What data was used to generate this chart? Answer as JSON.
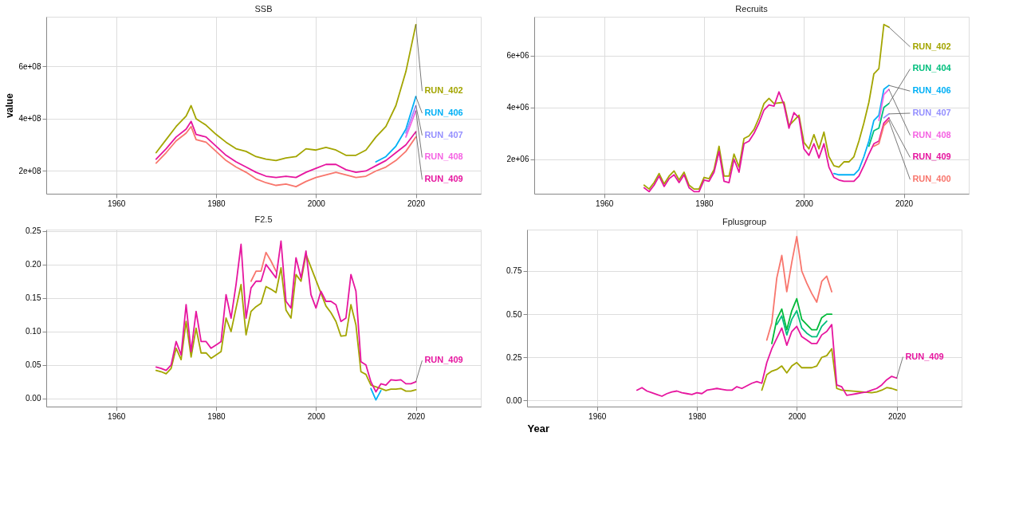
{
  "chart_data": [
    {
      "type": "line",
      "title": "SSB",
      "ylabel": "value",
      "grid": true,
      "legend": "right",
      "x": [
        1968,
        1970,
        1972,
        1974,
        1975,
        1976,
        1978,
        1980,
        1982,
        1984,
        1986,
        1988,
        1990,
        1992,
        1994,
        1996,
        1998,
        2000,
        2002,
        2004,
        2006,
        2008,
        2010,
        2012,
        2014,
        2016,
        2018,
        2020
      ],
      "xlim": [
        1946,
        2033
      ],
      "xticks": [
        1960,
        1980,
        2000,
        2020
      ],
      "ylim": [
        113000000,
        790000000
      ],
      "yticks": [
        {
          "value": 200000000,
          "label": "2e+08"
        },
        {
          "value": 400000000,
          "label": "4e+08"
        },
        {
          "value": 600000000,
          "label": "6e+08"
        }
      ],
      "series": [
        {
          "name": "RUN_402",
          "color": "#a3a500",
          "values": [
            270000000.0,
            320000000.0,
            370000000.0,
            410000000.0,
            450000000.0,
            400000000.0,
            375000000.0,
            340000000.0,
            310000000.0,
            285000000.0,
            275000000.0,
            255000000.0,
            245000000.0,
            240000000.0,
            250000000.0,
            255000000.0,
            285000000.0,
            280000000.0,
            290000000.0,
            280000000.0,
            260000000.0,
            260000000.0,
            280000000.0,
            330000000.0,
            370000000.0,
            450000000.0,
            580000000.0,
            760000000.0
          ]
        },
        {
          "color": "#f8766d",
          "values": [
            230000000.0,
            270000000.0,
            315000000.0,
            345000000.0,
            370000000.0,
            320000000.0,
            310000000.0,
            275000000.0,
            240000000.0,
            215000000.0,
            195000000.0,
            170000000.0,
            155000000.0,
            145000000.0,
            150000000.0,
            140000000.0,
            160000000.0,
            175000000.0,
            185000000.0,
            195000000.0,
            185000000.0,
            175000000.0,
            180000000.0,
            200000000.0,
            215000000.0,
            240000000.0,
            275000000.0,
            330000000.0
          ]
        },
        {
          "name": "RUN_406",
          "color": "#00b0f6",
          "values": [
            null,
            null,
            null,
            null,
            null,
            null,
            null,
            null,
            null,
            null,
            null,
            null,
            null,
            null,
            null,
            null,
            null,
            null,
            null,
            null,
            null,
            null,
            null,
            235000000.0,
            255000000.0,
            295000000.0,
            360000000.0,
            485000000.0
          ]
        },
        {
          "name": "RUN_407",
          "color": "#9590ff",
          "values": [
            null,
            null,
            null,
            null,
            null,
            null,
            null,
            null,
            null,
            null,
            null,
            null,
            null,
            null,
            null,
            null,
            null,
            null,
            null,
            null,
            null,
            null,
            null,
            null,
            null,
            null,
            345000000.0,
            450000000.0
          ]
        },
        {
          "name": "RUN_408",
          "color": "#f564e3",
          "values": [
            null,
            null,
            null,
            null,
            null,
            null,
            null,
            null,
            null,
            null,
            null,
            null,
            null,
            null,
            null,
            null,
            null,
            null,
            null,
            null,
            null,
            null,
            null,
            null,
            null,
            null,
            330000000.0,
            430000000.0
          ]
        },
        {
          "name": "RUN_409",
          "color": "#e6169f",
          "values": [
            245000000.0,
            285000000.0,
            330000000.0,
            360000000.0,
            390000000.0,
            340000000.0,
            330000000.0,
            295000000.0,
            260000000.0,
            235000000.0,
            215000000.0,
            195000000.0,
            180000000.0,
            175000000.0,
            180000000.0,
            175000000.0,
            195000000.0,
            210000000.0,
            225000000.0,
            225000000.0,
            205000000.0,
            195000000.0,
            200000000.0,
            220000000.0,
            240000000.0,
            270000000.0,
            300000000.0,
            350000000.0
          ]
        }
      ]
    },
    {
      "type": "line",
      "title": "Recruits",
      "grid": true,
      "legend": "right",
      "x": [
        1968,
        1969,
        1970,
        1971,
        1972,
        1973,
        1974,
        1975,
        1976,
        1977,
        1978,
        1979,
        1980,
        1981,
        1982,
        1983,
        1984,
        1985,
        1986,
        1987,
        1988,
        1989,
        1990,
        1991,
        1992,
        1993,
        1994,
        1995,
        1996,
        1997,
        1998,
        1999,
        2000,
        2001,
        2002,
        2003,
        2004,
        2005,
        2006,
        2007,
        2008,
        2009,
        2010,
        2011,
        2012,
        2013,
        2014,
        2015,
        2016,
        2017
      ],
      "xlim": [
        1946,
        2033
      ],
      "xticks": [
        1960,
        1980,
        2000,
        2020
      ],
      "ylim": [
        670000,
        7500000
      ],
      "yticks": [
        {
          "value": 2000000,
          "label": "2e+06"
        },
        {
          "value": 4000000,
          "label": "4e+06"
        },
        {
          "value": 6000000,
          "label": "6e+06"
        }
      ],
      "series": [
        {
          "name": "RUN_402",
          "color": "#a3a500",
          "values": [
            1000000.0,
            850000.0,
            1100000.0,
            1450000.0,
            1050000.0,
            1350000.0,
            1550000.0,
            1200000.0,
            1500000.0,
            1000000.0,
            850000.0,
            850000.0,
            1300000.0,
            1250000.0,
            1600000.0,
            2500000.0,
            1350000.0,
            1350000.0,
            2200000.0,
            1700000.0,
            2800000.0,
            2900000.0,
            3150000.0,
            3600000.0,
            4150000.0,
            4350000.0,
            4150000.0,
            null,
            4200000.0,
            3300000.0,
            null,
            3700000.0,
            2650000.0,
            2400000.0,
            2950000.0,
            2400000.0,
            3050000.0,
            2100000.0,
            1750000.0,
            1700000.0,
            1900000.0,
            1900000.0,
            2100000.0,
            2700000.0,
            3400000.0,
            4200000.0,
            5300000.0,
            5500000.0,
            7200000.0,
            7100000.0
          ]
        },
        {
          "name": "RUN_404",
          "color": "#00bf7d",
          "values": [
            null,
            null,
            null,
            null,
            null,
            null,
            null,
            null,
            null,
            null,
            null,
            null,
            null,
            null,
            null,
            null,
            null,
            null,
            null,
            null,
            null,
            null,
            null,
            null,
            null,
            null,
            null,
            null,
            null,
            null,
            null,
            null,
            null,
            null,
            null,
            null,
            null,
            null,
            null,
            null,
            null,
            null,
            null,
            null,
            null,
            2500000.0,
            3100000.0,
            3200000.0,
            4000000.0,
            4150000.0
          ]
        },
        {
          "name": "RUN_406",
          "color": "#00b0f6",
          "values": [
            null,
            null,
            null,
            null,
            null,
            null,
            null,
            null,
            null,
            null,
            null,
            null,
            null,
            null,
            null,
            null,
            null,
            null,
            null,
            null,
            null,
            null,
            null,
            null,
            null,
            null,
            null,
            null,
            null,
            null,
            null,
            null,
            null,
            null,
            null,
            null,
            null,
            null,
            1450000.0,
            1400000.0,
            1400000.0,
            1400000.0,
            1400000.0,
            1600000.0,
            2100000.0,
            2700000.0,
            3500000.0,
            3700000.0,
            4700000.0,
            4850000.0
          ]
        },
        {
          "name": "RUN_407",
          "color": "#9590ff",
          "values": [
            null,
            null,
            null,
            null,
            null,
            null,
            null,
            null,
            null,
            null,
            null,
            null,
            null,
            null,
            null,
            null,
            null,
            null,
            null,
            null,
            null,
            null,
            null,
            null,
            null,
            null,
            null,
            null,
            null,
            null,
            null,
            null,
            null,
            null,
            null,
            null,
            null,
            null,
            null,
            null,
            null,
            null,
            null,
            null,
            null,
            null,
            null,
            null,
            3600000.0,
            3750000.0
          ]
        },
        {
          "name": "RUN_408",
          "color": "#f564e3",
          "values": [
            null,
            null,
            null,
            null,
            null,
            null,
            null,
            null,
            null,
            null,
            null,
            null,
            null,
            null,
            null,
            null,
            null,
            null,
            null,
            null,
            null,
            null,
            null,
            null,
            null,
            null,
            null,
            null,
            null,
            null,
            null,
            null,
            null,
            null,
            null,
            null,
            null,
            null,
            null,
            null,
            null,
            null,
            null,
            null,
            null,
            null,
            null,
            3500000.0,
            4500000.0,
            4700000.0
          ]
        },
        {
          "name": "RUN_409",
          "color": "#e6169f",
          "values": [
            900000.0,
            750000.0,
            1000000.0,
            1350000.0,
            950000.0,
            1250000.0,
            1400000.0,
            1100000.0,
            1400000.0,
            900000.0,
            750000.0,
            750000.0,
            1200000.0,
            1150000.0,
            1500000.0,
            2300000.0,
            1150000.0,
            1100000.0,
            2000000.0,
            1500000.0,
            2600000.0,
            2700000.0,
            3000000.0,
            3400000.0,
            3900000.0,
            4100000.0,
            4050000.0,
            4600000.0,
            4100000.0,
            3200000.0,
            3800000.0,
            3600000.0,
            2400000.0,
            2150000.0,
            2600000.0,
            2050000.0,
            2600000.0,
            1700000.0,
            1300000.0,
            1200000.0,
            1150000.0,
            1150000.0,
            1150000.0,
            1350000.0,
            1750000.0,
            2200000.0,
            2600000.0,
            2700000.0,
            3400000.0,
            3600000.0
          ]
        },
        {
          "name": "RUN_400",
          "color": "#f8766d",
          "values": [
            null,
            null,
            null,
            null,
            null,
            null,
            null,
            null,
            null,
            null,
            null,
            null,
            null,
            null,
            null,
            null,
            null,
            null,
            null,
            null,
            null,
            null,
            null,
            null,
            null,
            null,
            null,
            null,
            null,
            null,
            null,
            null,
            null,
            null,
            null,
            null,
            null,
            null,
            null,
            null,
            null,
            null,
            null,
            null,
            null,
            null,
            2500000.0,
            2600000.0,
            3300000.0,
            3500000.0
          ]
        }
      ]
    },
    {
      "type": "line",
      "title": "F2.5",
      "grid": true,
      "legend": "right",
      "x": [
        1968,
        1969,
        1970,
        1971,
        1972,
        1973,
        1974,
        1975,
        1976,
        1977,
        1978,
        1979,
        1980,
        1981,
        1982,
        1983,
        1984,
        1985,
        1986,
        1987,
        1988,
        1989,
        1990,
        1991,
        1992,
        1993,
        1994,
        1995,
        1996,
        1997,
        1998,
        1999,
        2000,
        2001,
        2002,
        2003,
        2004,
        2005,
        2006,
        2007,
        2008,
        2009,
        2010,
        2011,
        2012,
        2013,
        2014,
        2015,
        2016,
        2017,
        2018,
        2019,
        2020
      ],
      "xlim": [
        1946,
        2033
      ],
      "xticks": [
        1960,
        1980,
        2000,
        2020
      ],
      "ylim": [
        -0.012,
        0.252
      ],
      "yticks": [
        {
          "value": 0,
          "label": "0.00"
        },
        0.05,
        {
          "value": 0.1,
          "label": "0.10"
        },
        0.15,
        {
          "value": 0.2,
          "label": "0.20"
        },
        0.25
      ],
      "series": [
        {
          "color": "#a3a500",
          "values": [
            0.042,
            0.04,
            0.037,
            0.045,
            0.075,
            0.058,
            0.115,
            0.062,
            0.105,
            0.068,
            0.068,
            0.06,
            0.065,
            0.07,
            0.12,
            0.1,
            0.135,
            0.17,
            0.095,
            0.13,
            0.137,
            0.142,
            0.167,
            0.163,
            0.158,
            0.195,
            0.132,
            0.12,
            0.185,
            0.175,
            0.215,
            null,
            null,
            null,
            0.138,
            0.128,
            0.115,
            0.093,
            0.094,
            0.14,
            0.11,
            0.04,
            0.036,
            0.02,
            null,
            0.015,
            0.012,
            0.014,
            0.014,
            0.015,
            0.011,
            0.011,
            0.013
          ]
        },
        {
          "color": "#00b0f6",
          "values": [
            null,
            null,
            null,
            null,
            null,
            null,
            null,
            null,
            null,
            null,
            null,
            null,
            null,
            null,
            null,
            null,
            null,
            null,
            null,
            null,
            null,
            null,
            null,
            null,
            null,
            null,
            null,
            null,
            null,
            null,
            null,
            null,
            null,
            null,
            null,
            null,
            null,
            null,
            null,
            null,
            null,
            null,
            null,
            0.015,
            -0.002,
            0.012,
            null,
            null,
            null,
            null,
            null,
            null,
            null
          ]
        },
        {
          "color": "#f8766d",
          "values": [
            null,
            null,
            null,
            null,
            null,
            null,
            null,
            null,
            null,
            null,
            null,
            null,
            null,
            null,
            null,
            null,
            null,
            null,
            null,
            0.175,
            0.19,
            0.19,
            0.218,
            0.205,
            0.19,
            null,
            null,
            null,
            null,
            null,
            null,
            null,
            null,
            null,
            null,
            null,
            null,
            null,
            null,
            null,
            null,
            null,
            null,
            null,
            null,
            null,
            null,
            null,
            null,
            null,
            null,
            null,
            null
          ]
        },
        {
          "name": "RUN_409",
          "color": "#e6169f",
          "values": [
            0.047,
            0.045,
            0.042,
            0.05,
            0.085,
            0.065,
            0.14,
            0.07,
            0.13,
            0.085,
            0.085,
            0.075,
            0.08,
            0.085,
            0.155,
            0.12,
            0.17,
            0.23,
            0.12,
            0.165,
            0.175,
            0.175,
            0.2,
            0.19,
            0.18,
            0.235,
            0.145,
            0.135,
            0.21,
            0.18,
            0.22,
            0.155,
            0.135,
            0.16,
            0.145,
            0.145,
            0.14,
            0.115,
            0.12,
            0.185,
            0.16,
            0.055,
            0.05,
            0.025,
            0.01,
            0.022,
            0.02,
            0.028,
            0.027,
            0.028,
            0.022,
            0.022,
            0.025
          ]
        }
      ]
    },
    {
      "type": "line",
      "title": "Fplusgroup",
      "xlabel": "Year",
      "grid": true,
      "legend": "right",
      "x": [
        1968,
        1969,
        1970,
        1971,
        1972,
        1973,
        1974,
        1975,
        1976,
        1977,
        1978,
        1979,
        1980,
        1981,
        1982,
        1983,
        1984,
        1985,
        1986,
        1987,
        1988,
        1989,
        1990,
        1991,
        1992,
        1993,
        1994,
        1995,
        1996,
        1997,
        1998,
        1999,
        2000,
        2001,
        2002,
        2003,
        2004,
        2005,
        2006,
        2007,
        2008,
        2009,
        2010,
        2011,
        2012,
        2013,
        2014,
        2015,
        2016,
        2017,
        2018,
        2019,
        2020
      ],
      "xlim": [
        1946,
        2033
      ],
      "xticks": [
        1960,
        1980,
        2000,
        2020
      ],
      "ylim": [
        -0.035,
        0.99
      ],
      "yticks": [
        {
          "value": 0,
          "label": "0.00"
        },
        0.25,
        {
          "value": 0.5,
          "label": "0.50"
        },
        0.75
      ],
      "series": [
        {
          "color": "#a3a500",
          "values": [
            null,
            null,
            null,
            null,
            null,
            null,
            null,
            null,
            null,
            null,
            null,
            null,
            null,
            null,
            null,
            null,
            null,
            null,
            null,
            null,
            null,
            null,
            null,
            null,
            null,
            0.06,
            0.15,
            0.17,
            0.18,
            0.2,
            0.16,
            0.2,
            0.22,
            0.19,
            0.19,
            0.19,
            0.2,
            0.25,
            0.26,
            0.3,
            0.07,
            0.06,
            null,
            null,
            null,
            null,
            null,
            0.045,
            0.05,
            0.06,
            0.075,
            0.07,
            0.06
          ]
        },
        {
          "color": "#f8766d",
          "values": [
            null,
            null,
            null,
            null,
            null,
            null,
            null,
            null,
            null,
            null,
            null,
            null,
            null,
            null,
            null,
            null,
            null,
            null,
            null,
            null,
            null,
            null,
            null,
            null,
            null,
            null,
            0.35,
            0.45,
            0.71,
            0.84,
            0.63,
            0.8,
            0.95,
            0.75,
            0.68,
            0.62,
            0.57,
            0.69,
            0.72,
            0.63,
            null,
            null,
            null,
            null,
            null,
            null,
            null,
            null,
            null,
            null,
            null,
            null,
            null
          ]
        },
        {
          "color": "#00ba38",
          "values": [
            null,
            null,
            null,
            null,
            null,
            null,
            null,
            null,
            null,
            null,
            null,
            null,
            null,
            null,
            null,
            null,
            null,
            null,
            null,
            null,
            null,
            null,
            null,
            null,
            null,
            null,
            null,
            0.33,
            0.47,
            0.53,
            0.41,
            0.52,
            0.59,
            0.47,
            0.44,
            0.41,
            0.41,
            0.48,
            0.5,
            0.5,
            null,
            null,
            null,
            null,
            null,
            null,
            null,
            null,
            null,
            null,
            null,
            null,
            null
          ]
        },
        {
          "color": "#00bf7d",
          "values": [
            null,
            null,
            null,
            null,
            null,
            null,
            null,
            null,
            null,
            null,
            null,
            null,
            null,
            null,
            null,
            null,
            null,
            null,
            null,
            null,
            null,
            null,
            null,
            null,
            null,
            null,
            null,
            null,
            0.44,
            0.49,
            0.38,
            0.47,
            0.52,
            0.42,
            0.39,
            0.37,
            0.37,
            0.43,
            0.46,
            null,
            null,
            null,
            null,
            null,
            null,
            null,
            null,
            null,
            null,
            null,
            null,
            null,
            null
          ]
        },
        {
          "name": "RUN_409",
          "color": "#e6169f",
          "values": [
            0.06,
            0.075,
            0.055,
            0.045,
            0.035,
            0.025,
            0.04,
            0.05,
            0.055,
            0.045,
            0.04,
            0.035,
            0.045,
            0.04,
            0.06,
            0.065,
            0.07,
            0.065,
            0.06,
            0.06,
            0.08,
            0.07,
            0.085,
            0.1,
            0.11,
            0.1,
            0.22,
            0.3,
            0.36,
            0.42,
            0.32,
            0.4,
            0.43,
            0.37,
            0.35,
            0.33,
            0.33,
            0.38,
            0.4,
            0.44,
            0.09,
            0.08,
            0.03,
            0.035,
            0.04,
            0.045,
            0.05,
            0.06,
            0.07,
            0.09,
            0.12,
            0.14,
            0.13
          ]
        }
      ]
    }
  ]
}
